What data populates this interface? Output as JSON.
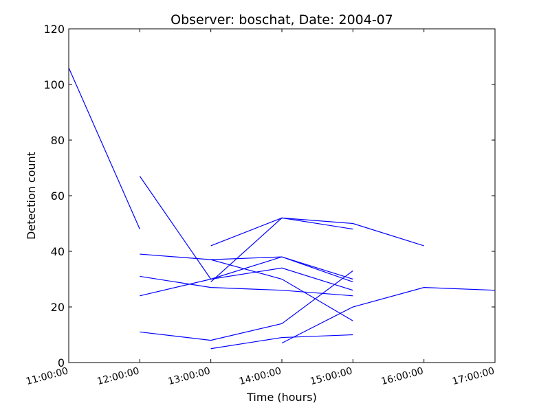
{
  "chart_data": {
    "type": "line",
    "title": "Observer: boschat, Date: 2004-07",
    "xlabel": "Time (hours)",
    "ylabel": "Detection count",
    "xlim": [
      "11:00:00",
      "17:00:00"
    ],
    "ylim": [
      0,
      120
    ],
    "x_ticks": [
      "11:00:00",
      "12:00:00",
      "13:00:00",
      "14:00:00",
      "15:00:00",
      "16:00:00",
      "17:00:00"
    ],
    "y_ticks": [
      0,
      20,
      40,
      60,
      80,
      100,
      120
    ],
    "grid": false,
    "legend": "none",
    "color": "#0000ff",
    "series": [
      {
        "x": [
          "11:00:00",
          "12:00:00"
        ],
        "y": [
          106,
          48
        ]
      },
      {
        "x": [
          "12:00:00",
          "13:00:00",
          "14:00:00",
          "15:00:00"
        ],
        "y": [
          67,
          30,
          38,
          29
        ]
      },
      {
        "x": [
          "12:00:00",
          "13:00:00",
          "14:00:00",
          "15:00:00"
        ],
        "y": [
          39,
          37,
          30,
          15
        ]
      },
      {
        "x": [
          "12:00:00",
          "13:00:00",
          "14:00:00",
          "15:00:00"
        ],
        "y": [
          31,
          27,
          26,
          24
        ]
      },
      {
        "x": [
          "12:00:00",
          "13:00:00",
          "14:00:00",
          "15:00:00"
        ],
        "y": [
          24,
          30,
          34,
          26
        ]
      },
      {
        "x": [
          "12:00:00",
          "13:00:00",
          "14:00:00",
          "15:00:00"
        ],
        "y": [
          11,
          8,
          14,
          33
        ]
      },
      {
        "x": [
          "13:00:00",
          "14:00:00",
          "15:00:00"
        ],
        "y": [
          42,
          52,
          48
        ]
      },
      {
        "x": [
          "13:00:00",
          "14:00:00",
          "15:00:00",
          "16:00:00"
        ],
        "y": [
          29,
          52,
          50,
          42
        ]
      },
      {
        "x": [
          "13:00:00",
          "14:00:00",
          "15:00:00"
        ],
        "y": [
          37,
          38,
          30
        ]
      },
      {
        "x": [
          "13:00:00",
          "14:00:00",
          "15:00:00"
        ],
        "y": [
          5,
          9,
          10
        ]
      },
      {
        "x": [
          "14:00:00",
          "15:00:00",
          "16:00:00",
          "17:00:00"
        ],
        "y": [
          7,
          20,
          27,
          26
        ]
      }
    ]
  }
}
